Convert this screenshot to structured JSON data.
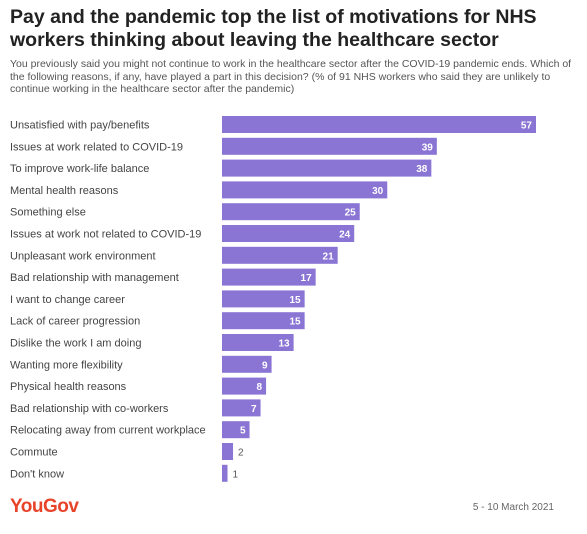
{
  "header": {
    "title": "Pay and the pandemic top the list of motivations for NHS workers thinking about leaving the healthcare sector",
    "subtitle": "You previously said you might not continue to work in the healthcare sector after the COVID-19 pandemic ends. Which of the following reasons, if any, have played a part in this decision? (% of 91 NHS workers who said they are unlikely to continue working in the healthcare sector after the pandemic)"
  },
  "chart_data": {
    "type": "bar",
    "orientation": "horizontal",
    "categories": [
      "Unsatisfied with pay/benefits",
      "Issues at work related to COVID-19",
      "To improve work-life balance",
      "Mental health reasons",
      "Something else",
      "Issues at work not related to COVID-19",
      "Unpleasant work environment",
      "Bad relationship with management",
      "I want to change career",
      "Lack of career progression",
      "Dislike the work I am doing",
      "Wanting more flexibility",
      "Physical health reasons",
      "Bad relationship with co-workers",
      "Relocating away from current workplace",
      "Commute",
      "Don't know"
    ],
    "values": [
      57,
      39,
      38,
      30,
      25,
      24,
      21,
      17,
      15,
      15,
      13,
      9,
      8,
      7,
      5,
      2,
      1
    ],
    "xlim": [
      0,
      57
    ],
    "bar_color": "#8a74d4",
    "grid": false,
    "legend": "none"
  },
  "footer": {
    "logo": "YouGov",
    "date": "5 - 10 March 2021"
  }
}
